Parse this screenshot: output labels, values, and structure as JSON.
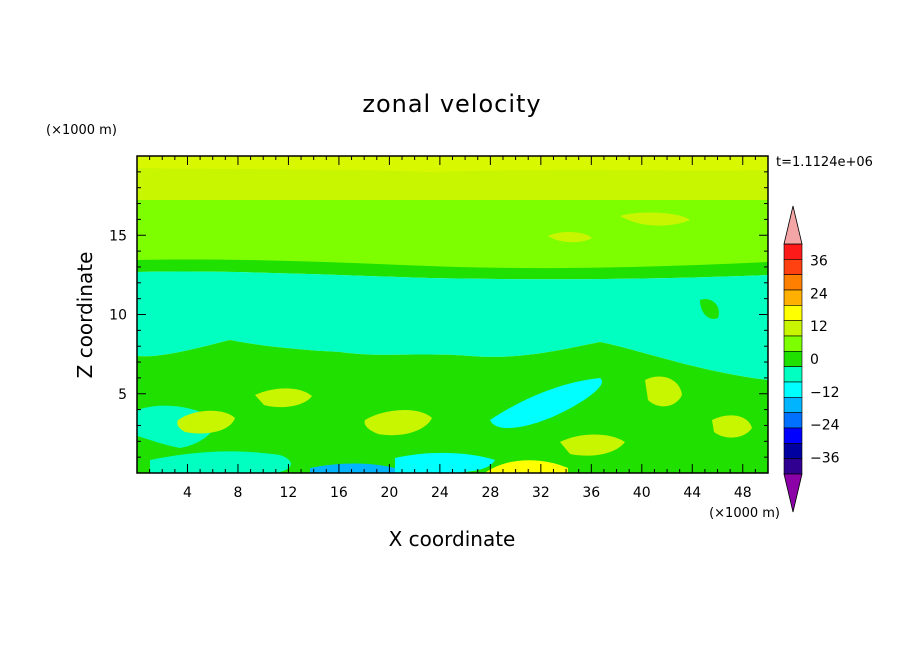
{
  "chart_data": {
    "type": "heatmap",
    "title": "zonal velocity",
    "xlabel": "X coordinate",
    "ylabel": "Z coordinate",
    "x_unit": "(×1000 m)",
    "y_unit": "(×1000 m)",
    "time_label": "t=1.1124e+06",
    "xlim": [
      0,
      50
    ],
    "ylim": [
      0,
      20
    ],
    "x_ticks": [
      4,
      8,
      12,
      16,
      20,
      24,
      28,
      32,
      36,
      40,
      44,
      48
    ],
    "y_ticks": [
      5,
      10,
      15
    ],
    "colorbar": {
      "levels": [
        -42,
        -36,
        -30,
        -24,
        -18,
        -12,
        -6,
        0,
        6,
        12,
        18,
        24,
        30,
        36,
        42
      ],
      "tick_labels": [
        "36",
        "24",
        "12",
        "0",
        "−12",
        "−24",
        "−36"
      ],
      "tick_values": [
        36,
        24,
        12,
        0,
        -12,
        -24,
        -36
      ],
      "colors_high_to_low": [
        "#ff1a1a",
        "#ff4010",
        "#ff8000",
        "#ffb000",
        "#ffff00",
        "#c8f500",
        "#7dff00",
        "#20e000",
        "#00ffc0",
        "#00ffff",
        "#00b4ff",
        "#0070ff",
        "#0000ff",
        "#0000a0",
        "#300090"
      ],
      "overflow_high": "#f4a6a6",
      "overflow_low": "#8c00a8"
    },
    "bands": [
      {
        "z_min": 17.5,
        "z_max": 20,
        "value": 10,
        "color": "#c8f500"
      },
      {
        "z_min": 13.0,
        "z_max": 17.5,
        "value": 4,
        "color": "#7dff00"
      },
      {
        "z_min": 12.8,
        "z_max": 13.4,
        "value": 1,
        "color": "#20e000"
      },
      {
        "z_min": 7.5,
        "z_max": 12.8,
        "value": -4,
        "color": "#00ffc0"
      },
      {
        "z_min": 0,
        "z_max": 7.5,
        "value": 0,
        "color": "#20e000"
      }
    ]
  }
}
